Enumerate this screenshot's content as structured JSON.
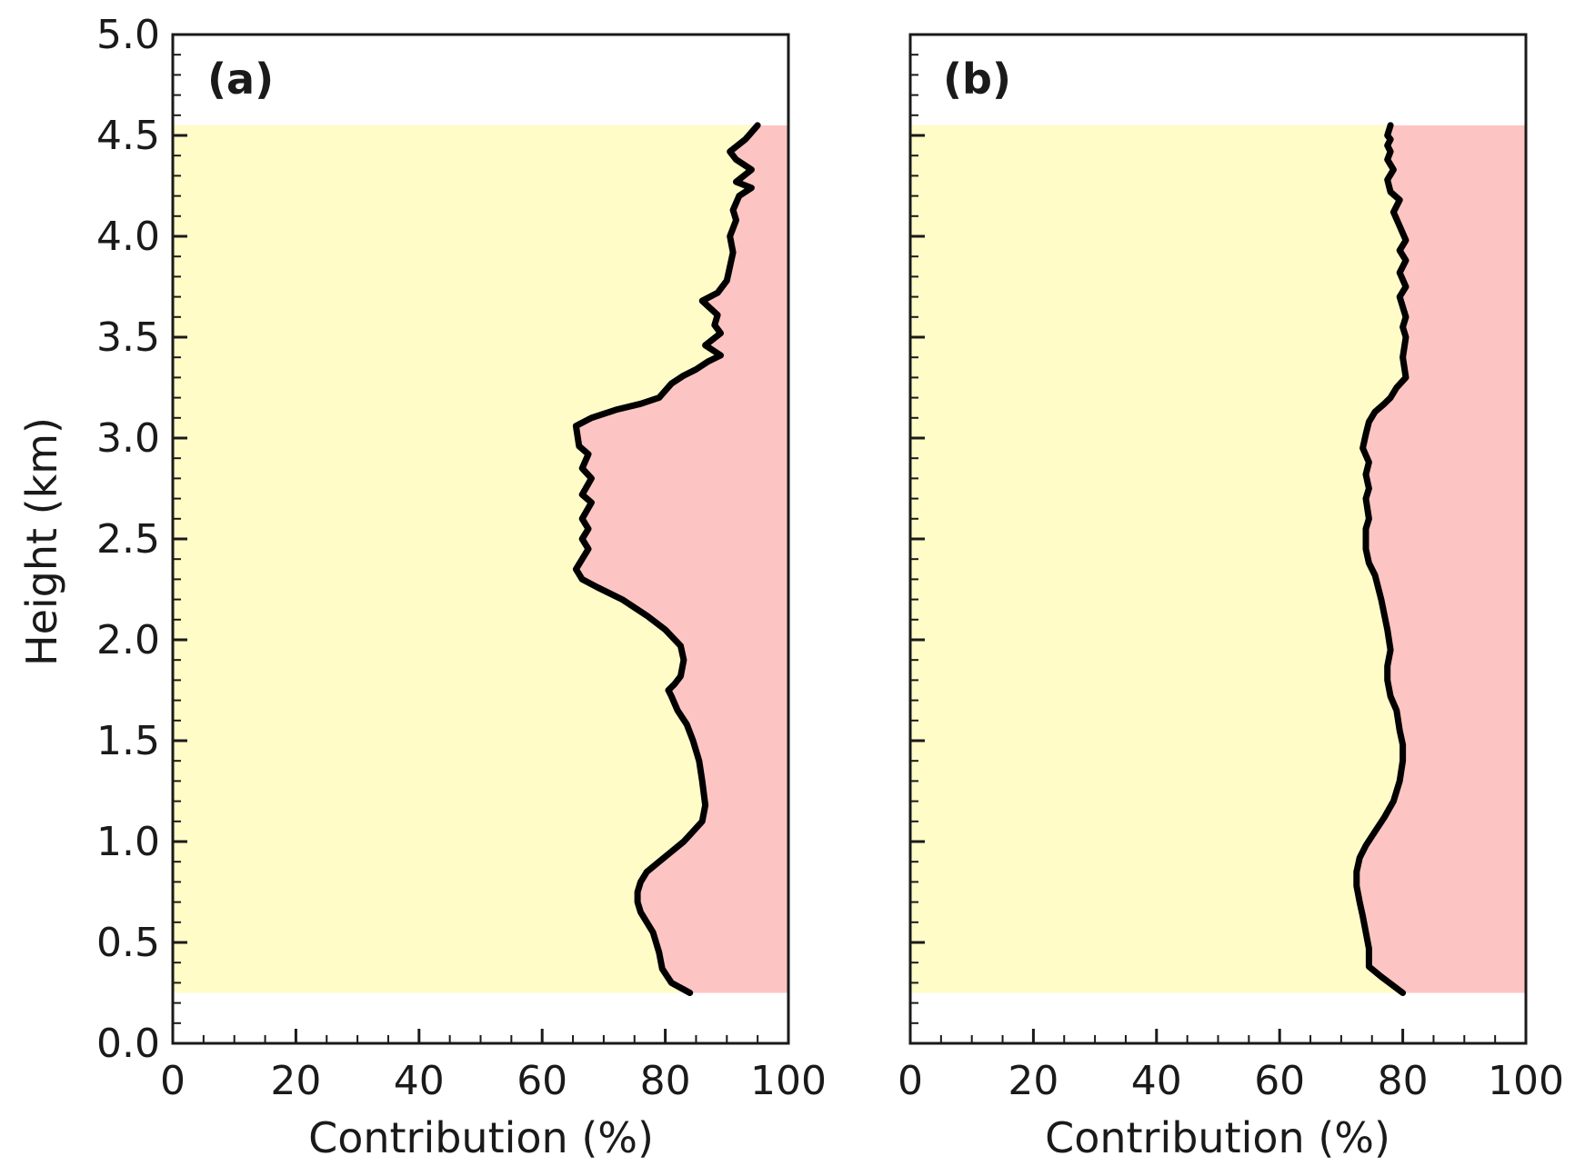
{
  "figure": {
    "colors": {
      "yellow_region": "#FFFCC8",
      "red_region": "#FCC5C3",
      "line": "#000000",
      "axis": "#1a1a1a"
    }
  },
  "chart_data": [
    {
      "type": "line",
      "panel_label": "(a)",
      "xlabel": "Contribution (%)",
      "ylabel": "Height (km)",
      "xlim": [
        0,
        100
      ],
      "ylim": [
        0,
        5
      ],
      "xticks": [
        "0",
        "20",
        "40",
        "60",
        "80",
        "100"
      ],
      "yticks": [
        "0.0",
        "0.5",
        "1.0",
        "1.5",
        "2.0",
        "2.5",
        "3.0",
        "3.5",
        "4.0",
        "4.5",
        "5.0"
      ],
      "shaded_height_range": [
        0.25,
        4.55
      ],
      "series": [
        {
          "name": "contribution",
          "x": [
            84,
            81,
            79.5,
            79,
            78,
            77,
            76,
            75.5,
            75.5,
            76,
            77,
            79,
            81,
            83,
            84.5,
            86,
            86.5,
            86,
            85.5,
            84.5,
            83.5,
            82,
            81,
            80.5,
            81.5,
            82.5,
            83,
            82.5,
            80,
            77,
            73,
            69,
            66.5,
            65.5,
            66.5,
            67.5,
            66.5,
            67.5,
            66.5,
            68,
            66.5,
            68,
            66.5,
            67.5,
            66,
            65.5,
            68,
            72,
            76,
            79,
            81,
            83,
            85,
            87,
            89,
            86.5,
            89,
            88,
            88.5,
            86,
            88.5,
            90,
            90.5,
            91,
            90.5,
            91.5,
            91,
            92,
            94,
            91.5,
            94,
            91.5,
            90.5,
            93,
            95
          ],
          "y": [
            0.25,
            0.3,
            0.37,
            0.45,
            0.55,
            0.6,
            0.65,
            0.7,
            0.75,
            0.8,
            0.85,
            0.9,
            0.95,
            1.0,
            1.05,
            1.1,
            1.18,
            1.3,
            1.4,
            1.5,
            1.58,
            1.65,
            1.72,
            1.75,
            1.78,
            1.82,
            1.9,
            1.97,
            2.05,
            2.12,
            2.2,
            2.26,
            2.3,
            2.35,
            2.4,
            2.45,
            2.5,
            2.55,
            2.6,
            2.68,
            2.72,
            2.8,
            2.85,
            2.92,
            2.96,
            3.06,
            3.1,
            3.14,
            3.17,
            3.2,
            3.27,
            3.31,
            3.34,
            3.38,
            3.41,
            3.46,
            3.52,
            3.56,
            3.61,
            3.68,
            3.72,
            3.78,
            3.85,
            3.92,
            4.0,
            4.08,
            4.13,
            4.2,
            4.24,
            4.27,
            4.33,
            4.38,
            4.42,
            4.48,
            4.55
          ]
        }
      ]
    },
    {
      "type": "line",
      "panel_label": "(b)",
      "xlabel": "Contribution (%)",
      "ylabel": "",
      "xlim": [
        0,
        100
      ],
      "ylim": [
        0,
        5
      ],
      "xticks": [
        "0",
        "20",
        "40",
        "60",
        "80",
        "100"
      ],
      "yticks": [],
      "shaded_height_range": [
        0.25,
        4.55
      ],
      "series": [
        {
          "name": "contribution",
          "x": [
            80,
            76.5,
            74.5,
            74.5,
            74,
            73.5,
            73,
            72.5,
            72.5,
            73,
            74,
            75.5,
            77,
            78.5,
            79.5,
            80,
            80,
            79.5,
            79,
            78,
            77.5,
            77.5,
            78,
            77.5,
            76.5,
            75.5,
            74.5,
            74,
            74,
            74.5,
            74,
            74.5,
            74,
            74.5,
            73.5,
            74,
            74.5,
            75.5,
            77,
            78,
            79,
            80.5,
            80,
            80.5,
            80,
            80.5,
            79.5,
            80.5,
            79.5,
            80.5,
            79.5,
            80.5,
            79.5,
            78.5,
            79.5,
            78,
            77.5,
            78.5,
            77.5,
            78,
            77.5,
            78,
            77.5,
            78
          ],
          "y": [
            0.25,
            0.33,
            0.38,
            0.47,
            0.55,
            0.63,
            0.7,
            0.78,
            0.85,
            0.92,
            0.98,
            1.05,
            1.12,
            1.2,
            1.3,
            1.4,
            1.48,
            1.55,
            1.65,
            1.72,
            1.8,
            1.87,
            1.95,
            2.05,
            2.2,
            2.32,
            2.38,
            2.45,
            2.55,
            2.6,
            2.7,
            2.75,
            2.82,
            2.88,
            2.95,
            3.02,
            3.08,
            3.13,
            3.17,
            3.2,
            3.25,
            3.3,
            3.4,
            3.5,
            3.55,
            3.6,
            3.7,
            3.75,
            3.82,
            3.88,
            3.93,
            3.98,
            4.05,
            4.12,
            4.18,
            4.22,
            4.28,
            4.33,
            4.38,
            4.42,
            4.45,
            4.48,
            4.5,
            4.55
          ]
        }
      ]
    }
  ]
}
